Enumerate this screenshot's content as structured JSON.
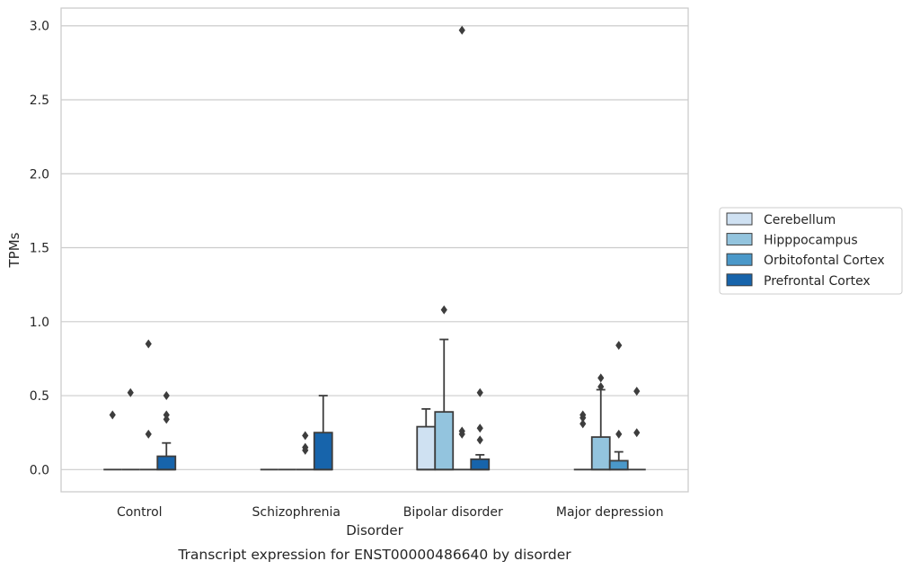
{
  "caption": "Transcript expression for ENST00000486640 by disorder",
  "chart_data": {
    "type": "box",
    "title": "",
    "xlabel": "Disorder",
    "ylabel": "TPMs",
    "ylim": [
      -0.15,
      3.12
    ],
    "yticks": [
      0.0,
      0.5,
      1.0,
      1.5,
      2.0,
      2.5,
      3.0
    ],
    "ytick_labels": [
      "0.0",
      "0.5",
      "1.0",
      "1.5",
      "2.0",
      "2.5",
      "3.0"
    ],
    "grid": "horizontal",
    "legend_position": "right",
    "categories": [
      "Control",
      "Schizophrenia",
      "Bipolar disorder",
      "Major depression"
    ],
    "series": [
      {
        "name": "Cerebellum",
        "color": "#cfe1f2",
        "boxes": [
          {
            "q1": 0,
            "median": 0,
            "q3": 0,
            "whisker_low": 0,
            "whisker_high": 0,
            "outliers": [
              0.37
            ]
          },
          {
            "q1": 0,
            "median": 0,
            "q3": 0,
            "whisker_low": 0,
            "whisker_high": 0,
            "outliers": []
          },
          {
            "q1": 0,
            "median": 0,
            "q3": 0.29,
            "whisker_low": 0,
            "whisker_high": 0.41,
            "outliers": []
          },
          {
            "q1": 0,
            "median": 0,
            "q3": 0,
            "whisker_low": 0,
            "whisker_high": 0,
            "outliers": [
              0.31,
              0.35,
              0.37
            ]
          }
        ]
      },
      {
        "name": "Hipppocampus",
        "color": "#93c4de",
        "boxes": [
          {
            "q1": 0,
            "median": 0,
            "q3": 0,
            "whisker_low": 0,
            "whisker_high": 0,
            "outliers": [
              0.52
            ]
          },
          {
            "q1": 0,
            "median": 0,
            "q3": 0,
            "whisker_low": 0,
            "whisker_high": 0,
            "outliers": []
          },
          {
            "q1": 0,
            "median": 0,
            "q3": 0.39,
            "whisker_low": 0,
            "whisker_high": 0.88,
            "outliers": [
              1.08
            ]
          },
          {
            "q1": 0,
            "median": 0,
            "q3": 0.22,
            "whisker_low": 0,
            "whisker_high": 0.54,
            "outliers": [
              0.56,
              0.62
            ]
          }
        ]
      },
      {
        "name": "Orbitofontal Cortex",
        "color": "#4a98c9",
        "boxes": [
          {
            "q1": 0,
            "median": 0,
            "q3": 0,
            "whisker_low": 0,
            "whisker_high": 0,
            "outliers": [
              0.24,
              0.85
            ]
          },
          {
            "q1": 0,
            "median": 0,
            "q3": 0,
            "whisker_low": 0,
            "whisker_high": 0,
            "outliers": [
              0.13,
              0.15,
              0.23
            ]
          },
          {
            "q1": 0,
            "median": 0,
            "q3": 0,
            "whisker_low": 0,
            "whisker_high": 0,
            "outliers": [
              0.24,
              0.26,
              2.97
            ]
          },
          {
            "q1": 0,
            "median": 0,
            "q3": 0.06,
            "whisker_low": 0,
            "whisker_high": 0.12,
            "outliers": [
              0.24,
              0.84
            ]
          }
        ]
      },
      {
        "name": "Prefrontal Cortex",
        "color": "#1764ab",
        "boxes": [
          {
            "q1": 0,
            "median": 0,
            "q3": 0.09,
            "whisker_low": 0,
            "whisker_high": 0.18,
            "outliers": [
              0.34,
              0.37,
              0.5
            ]
          },
          {
            "q1": 0,
            "median": 0,
            "q3": 0.25,
            "whisker_low": 0,
            "whisker_high": 0.5,
            "outliers": []
          },
          {
            "q1": 0,
            "median": 0,
            "q3": 0.07,
            "whisker_low": 0,
            "whisker_high": 0.1,
            "outliers": [
              0.2,
              0.28,
              0.52
            ]
          },
          {
            "q1": 0,
            "median": 0,
            "q3": 0,
            "whisker_low": 0,
            "whisker_high": 0,
            "outliers": [
              0.25,
              0.53
            ]
          }
        ]
      }
    ]
  }
}
